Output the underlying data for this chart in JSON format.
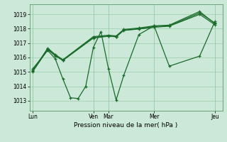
{
  "background_color": "#cce8d8",
  "grid_color": "#99ccaa",
  "line_color": "#1a6b2a",
  "xlabel": "Pression niveau de la mer( hPa )",
  "ylim": [
    1012.3,
    1019.7
  ],
  "yticks": [
    1013,
    1014,
    1015,
    1016,
    1017,
    1018,
    1019
  ],
  "day_labels": [
    "Lun",
    "Ven",
    "Mar",
    "Mer",
    "Jeu"
  ],
  "day_positions": [
    0.0,
    4.0,
    5.0,
    8.0,
    12.0
  ],
  "xlim": [
    -0.2,
    12.5
  ],
  "series": [
    {
      "x": [
        0.0,
        1.0,
        1.5,
        2.0,
        2.5,
        3.0,
        3.5,
        4.0,
        4.5,
        5.0,
        5.5,
        6.0,
        7.0,
        8.0,
        9.0,
        11.0,
        12.0
      ],
      "y": [
        1015.2,
        1016.5,
        1015.9,
        1014.5,
        1013.2,
        1013.15,
        1014.0,
        1016.7,
        1017.8,
        1015.2,
        1013.05,
        1014.75,
        1017.6,
        1018.2,
        1015.4,
        1016.1,
        1018.5
      ]
    },
    {
      "x": [
        0.0,
        1.0,
        1.5,
        2.0,
        4.0,
        5.0,
        5.5,
        6.0,
        7.0,
        8.0,
        9.0,
        11.0,
        12.0
      ],
      "y": [
        1015.1,
        1016.6,
        1016.1,
        1015.8,
        1017.4,
        1017.5,
        1017.45,
        1017.9,
        1018.0,
        1018.15,
        1018.2,
        1019.1,
        1018.4
      ]
    },
    {
      "x": [
        0.0,
        1.0,
        1.5,
        2.0,
        4.0,
        5.0,
        5.5,
        6.0,
        7.0,
        8.0,
        9.0,
        11.0,
        12.0
      ],
      "y": [
        1015.05,
        1016.65,
        1016.2,
        1015.85,
        1017.45,
        1017.55,
        1017.5,
        1017.95,
        1018.05,
        1018.2,
        1018.25,
        1019.2,
        1018.35
      ]
    },
    {
      "x": [
        0.0,
        1.0,
        1.5,
        2.0,
        4.0,
        5.0,
        5.5,
        6.0,
        7.0,
        8.0,
        9.0,
        11.0,
        12.0
      ],
      "y": [
        1015.0,
        1016.55,
        1016.15,
        1015.8,
        1017.35,
        1017.48,
        1017.44,
        1017.88,
        1017.98,
        1018.1,
        1018.18,
        1019.0,
        1018.28
      ]
    }
  ]
}
